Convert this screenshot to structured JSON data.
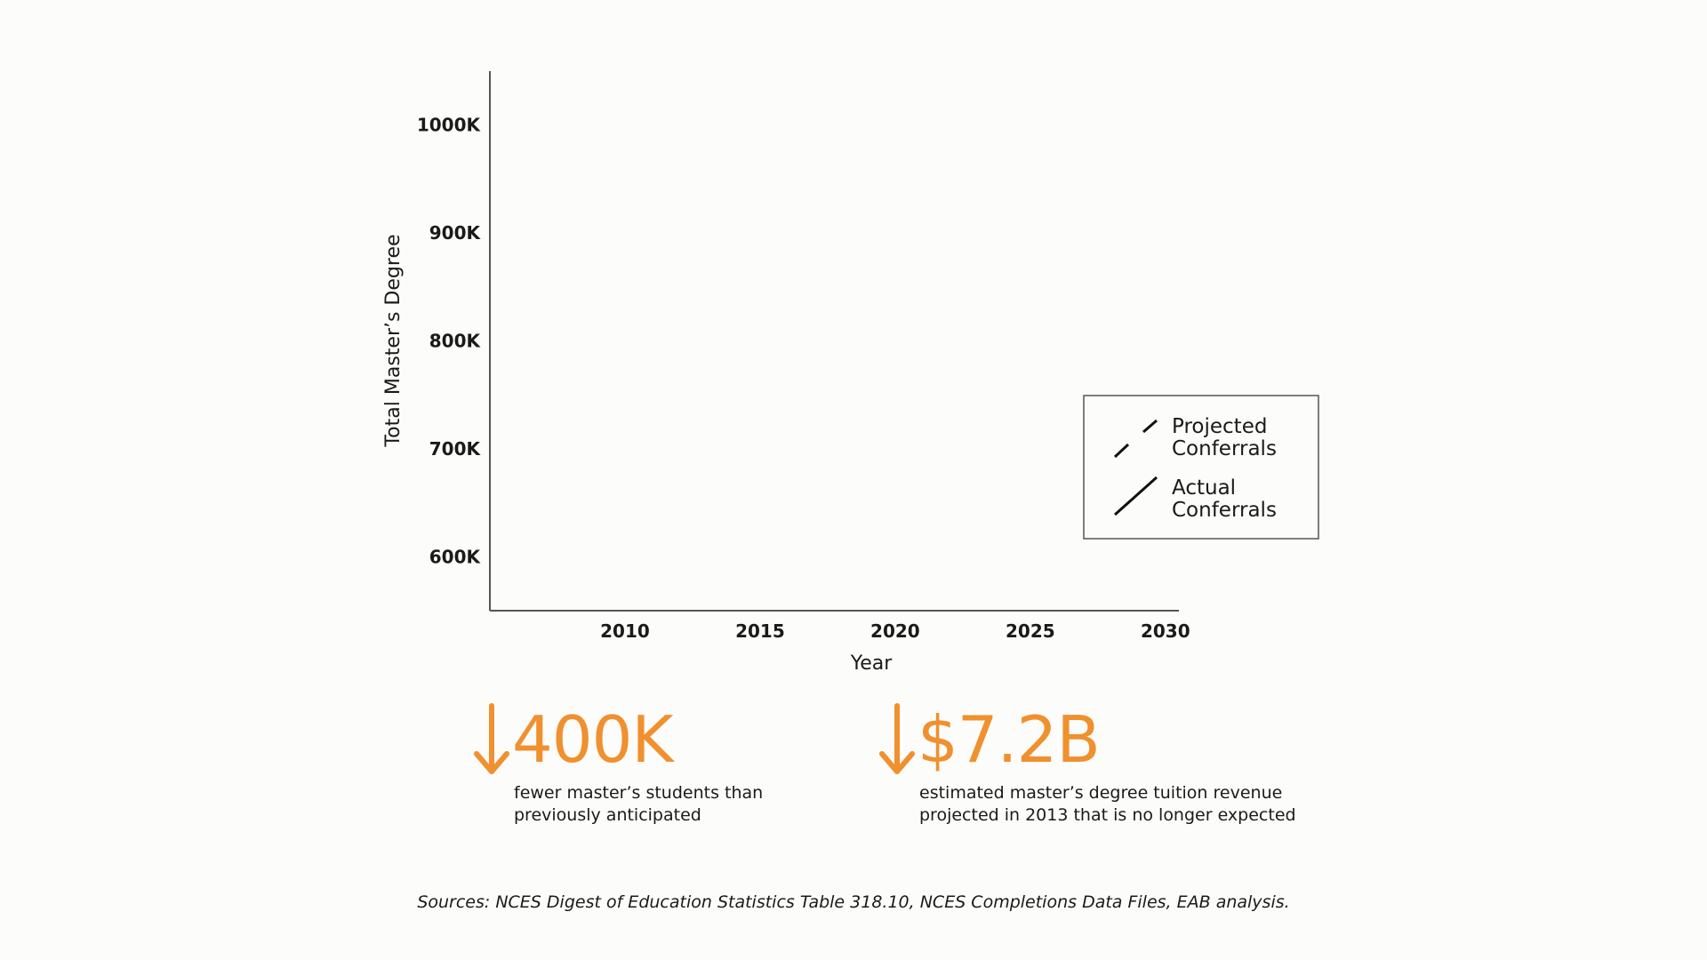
{
  "chart_data": {
    "type": "line",
    "title": "",
    "xlabel": "Year",
    "ylabel": "Total Master’s Degree",
    "x_ticks": [
      "2010",
      "2015",
      "2020",
      "2025",
      "2030"
    ],
    "y_ticks": [
      "600K",
      "700K",
      "800K",
      "900K",
      "1000K"
    ],
    "xlim": [
      2005,
      2030.5
    ],
    "ylim": [
      550000,
      1050000
    ],
    "grid": false,
    "legend_position": "right",
    "series": [
      {
        "name": "Projected Conferrals",
        "style": "dashed",
        "values": []
      },
      {
        "name": "Actual Conferrals",
        "style": "solid",
        "values": []
      }
    ]
  },
  "legend": {
    "projected_line1": "Projected",
    "projected_line2": "Conferrals",
    "actual_line1": "Actual",
    "actual_line2": "Conferrals"
  },
  "stats": [
    {
      "value": "400K",
      "arrow_icon": "down-arrow-icon",
      "desc_line1": "fewer master’s students than",
      "desc_line2": "previously anticipated"
    },
    {
      "value": "$7.2B",
      "arrow_icon": "down-arrow-icon",
      "desc_line1": "estimated master’s degree tuition revenue",
      "desc_line2": "projected in 2013 that is no longer expected"
    }
  ],
  "sources": "Sources: NCES Digest of Education Statistics Table 318.10, NCES Completions Data Files, EAB analysis.",
  "colors": {
    "accent": "#f0902e",
    "text": "#1a1a1a",
    "axis": "#555555",
    "background": "#fcfcfa"
  }
}
